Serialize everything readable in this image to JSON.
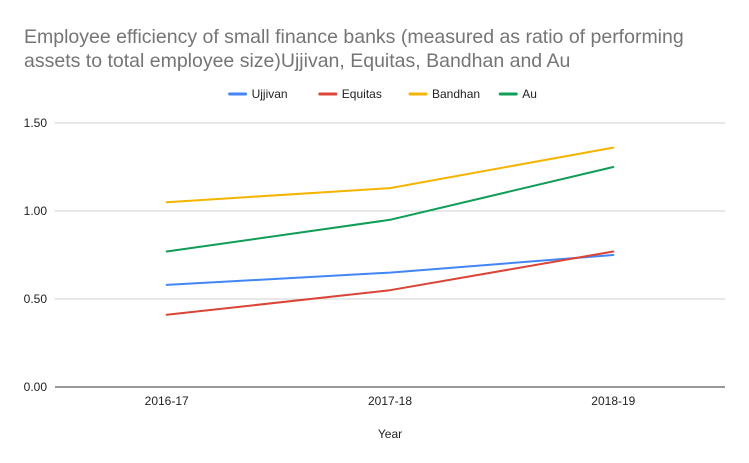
{
  "chart_data": {
    "type": "line",
    "title_lines": [
      "Employee efficiency of small finance banks (measured as ratio of performing",
      "assets to total employee size)Ujjivan, Equitas, Bandhan and Au"
    ],
    "xlabel": "Year",
    "ylabel": "",
    "categories": [
      "2016-17",
      "2017-18",
      "2018-19"
    ],
    "y_ticks": [
      "0.00",
      "0.50",
      "1.00",
      "1.50"
    ],
    "ylim": [
      0,
      1.5
    ],
    "grid": true,
    "legend_position": "top",
    "series": [
      {
        "name": "Ujjivan",
        "color": "#4285f4",
        "values": [
          0.58,
          0.65,
          0.75
        ]
      },
      {
        "name": "Equitas",
        "color": "#db4437",
        "values": [
          0.41,
          0.55,
          0.77
        ]
      },
      {
        "name": "Bandhan",
        "color": "#f4b400",
        "values": [
          1.05,
          1.13,
          1.36
        ]
      },
      {
        "name": "Au",
        "color": "#0f9d58",
        "values": [
          0.77,
          0.95,
          1.25
        ]
      }
    ]
  }
}
